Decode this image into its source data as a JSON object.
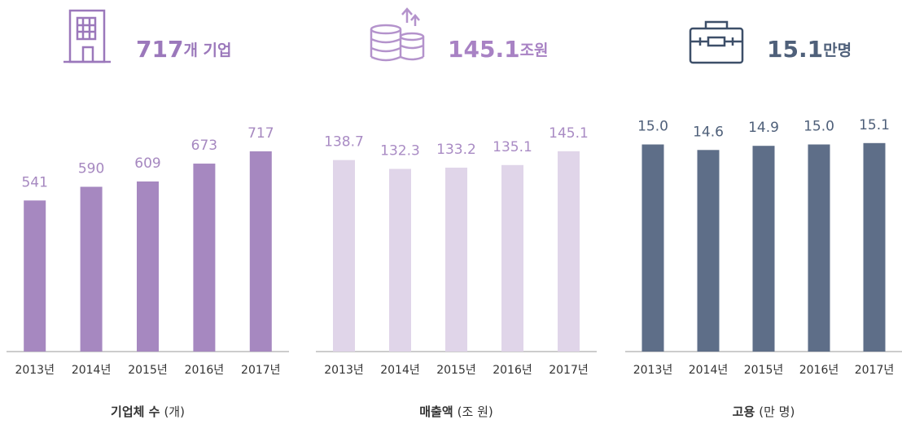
{
  "chart_data": [
    {
      "type": "bar",
      "headline": "717",
      "headline_unit": "개 기업",
      "xlabel": "기업체 수",
      "xlabel_unit": "(개)",
      "categories": [
        "2013년",
        "2014년",
        "2015년",
        "2016년",
        "2017년"
      ],
      "values": [
        541,
        590,
        609,
        673,
        717
      ],
      "color": "#a688c0",
      "label_color": "#a688c0",
      "headline_color": "#9b78bb",
      "ylim": [
        0,
        880
      ]
    },
    {
      "type": "bar",
      "headline": "145.1",
      "headline_unit": "조원",
      "xlabel": "매출액",
      "xlabel_unit": "(조 원)",
      "categories": [
        "2013년",
        "2014년",
        "2015년",
        "2016년",
        "2017년"
      ],
      "values": [
        138.7,
        132.3,
        133.2,
        135.1,
        145.1
      ],
      "color": "#e0d5e9",
      "label_color": "#a98bc4",
      "headline_color": "#a882c4",
      "ylim": [
        0,
        178
      ]
    },
    {
      "type": "bar",
      "headline": "15.1",
      "headline_unit": "만명",
      "xlabel": "고용",
      "xlabel_unit": "(만 명)",
      "categories": [
        "2013년",
        "2014년",
        "2015년",
        "2016년",
        "2017년"
      ],
      "values": [
        15.0,
        14.6,
        14.9,
        15.0,
        15.1
      ],
      "value_labels": [
        "15.0",
        "14.6",
        "14.9",
        "15.0",
        "15.1"
      ],
      "color": "#5e6e88",
      "label_color": "#4f607a",
      "headline_color": "#4f607a",
      "ylim": [
        0,
        17.8
      ]
    }
  ]
}
